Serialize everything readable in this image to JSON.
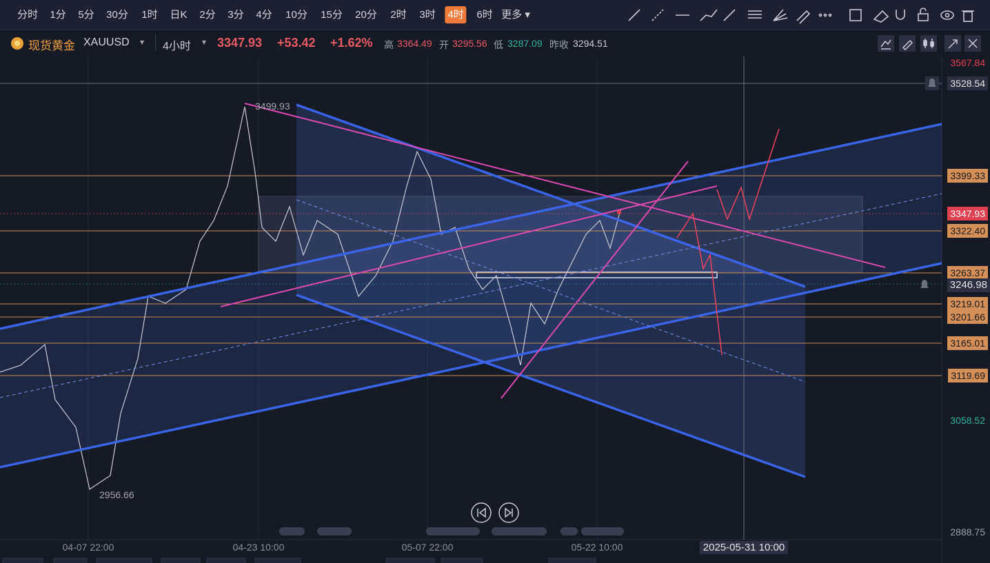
{
  "toolbar": {
    "intervals": [
      "分时",
      "1分",
      "5分",
      "30分",
      "1时",
      "日K",
      "2分",
      "3分",
      "4分",
      "10分",
      "15分",
      "20分",
      "2时",
      "3时",
      "4时",
      "6时"
    ],
    "active": 14,
    "more": "更多"
  },
  "header": {
    "symbol_name": "现货黄金",
    "symbol": "XAUUSD",
    "interval": "4小时",
    "price": "3347.93",
    "change": "+53.42",
    "change_pct": "+1.62%",
    "high_label": "高",
    "high": "3364.49",
    "open_label": "开",
    "open": "3295.56",
    "low_label": "低",
    "low": "3287.09",
    "prev_label": "昨收",
    "prev": "3294.51"
  },
  "price_axis": [
    "3567.84",
    "3528.54",
    "3399.33",
    "3347.93",
    "3322.40",
    "3263.37",
    "3246.98",
    "3219.01",
    "3201.66",
    "3165.01",
    "3119.69",
    "3058.52",
    "2888.75"
  ],
  "annotations": {
    "high_mark": "3499.93",
    "low_mark": "2956.66"
  },
  "date_axis": [
    "04-07 22:00",
    "04-23 10:00",
    "05-07 22:00",
    "05-22 10:00"
  ],
  "crosshair_date": "2025-05-31 10:00"
}
